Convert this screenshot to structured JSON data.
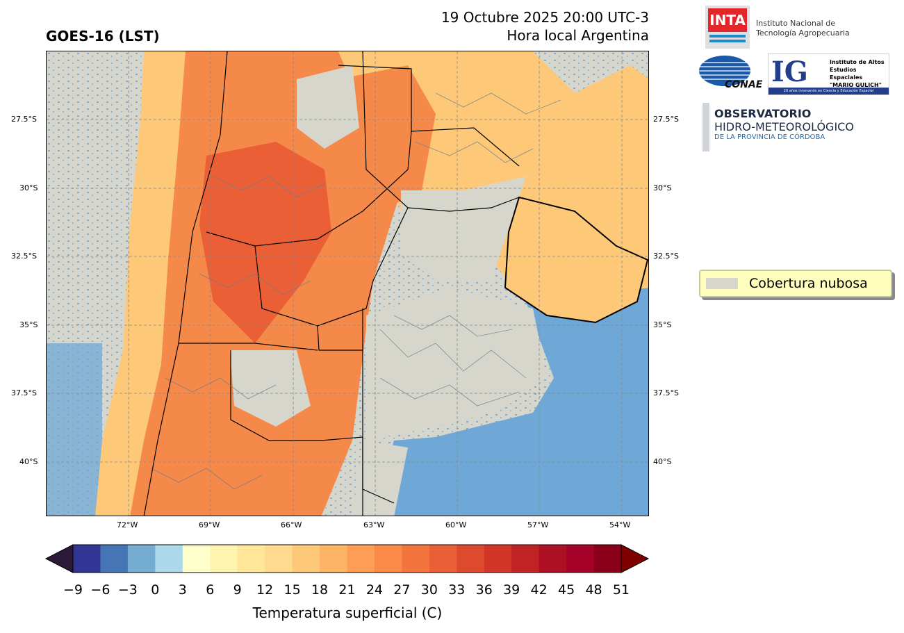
{
  "title_left": "GOES-16 (LST)",
  "title_right_line1": "19 Octubre 2025 20:00 UTC-3",
  "title_right_line2": "Hora local Argentina",
  "lat_ticks": [
    "27.5°S",
    "30°S",
    "32.5°S",
    "35°S",
    "37.5°S",
    "40°S"
  ],
  "lon_ticks": [
    "72°W",
    "69°W",
    "66°W",
    "63°W",
    "60°W",
    "57°W",
    "54°W"
  ],
  "legend_label": "Cobertura nubosa",
  "colorbar": {
    "ticks": [
      "−9",
      "−6",
      "−3",
      "0",
      "3",
      "6",
      "9",
      "12",
      "15",
      "18",
      "21",
      "24",
      "27",
      "30",
      "33",
      "36",
      "39",
      "42",
      "45",
      "48",
      "51"
    ],
    "colors": [
      "#313695",
      "#4575b4",
      "#74add1",
      "#abd9e9",
      "#ffffcc",
      "#fff3b0",
      "#ffe699",
      "#fed98e",
      "#fdc978",
      "#fdb466",
      "#fd9e54",
      "#fa8a48",
      "#f4743e",
      "#ea5f36",
      "#de4a2e",
      "#d23628",
      "#c12324",
      "#ad1024",
      "#a50026",
      "#8b0019"
    ],
    "under_color": "#2d1a3a",
    "over_color": "#800000",
    "label": "Temperatura superficial (C)"
  },
  "logos": {
    "inta_mark": "INTA",
    "inta_line1": "Instituto Nacional de",
    "inta_line2": "Tecnología Agropecuaria",
    "conae": "CONAE",
    "ig_mark": "IG",
    "ig_line1": "Instituto de Altos",
    "ig_line2": "Estudios Espaciales",
    "ig_line3": "\"MARIO GULICH\"",
    "ig_tagline": "20 años innovando en Ciencia y Educación Espacial",
    "obs_line1": "OBSERVATORIO",
    "obs_line2": "HIDRO-METEOROLÓGICO",
    "obs_line3": "DE LA PROVINCIA DE CÓRDOBA"
  },
  "colors": {
    "ocean": "#6fa8d6",
    "cloud": "#d6d6cc",
    "warm": "#f5894a",
    "mild": "#fdc978",
    "hot": "#ea5f36"
  }
}
